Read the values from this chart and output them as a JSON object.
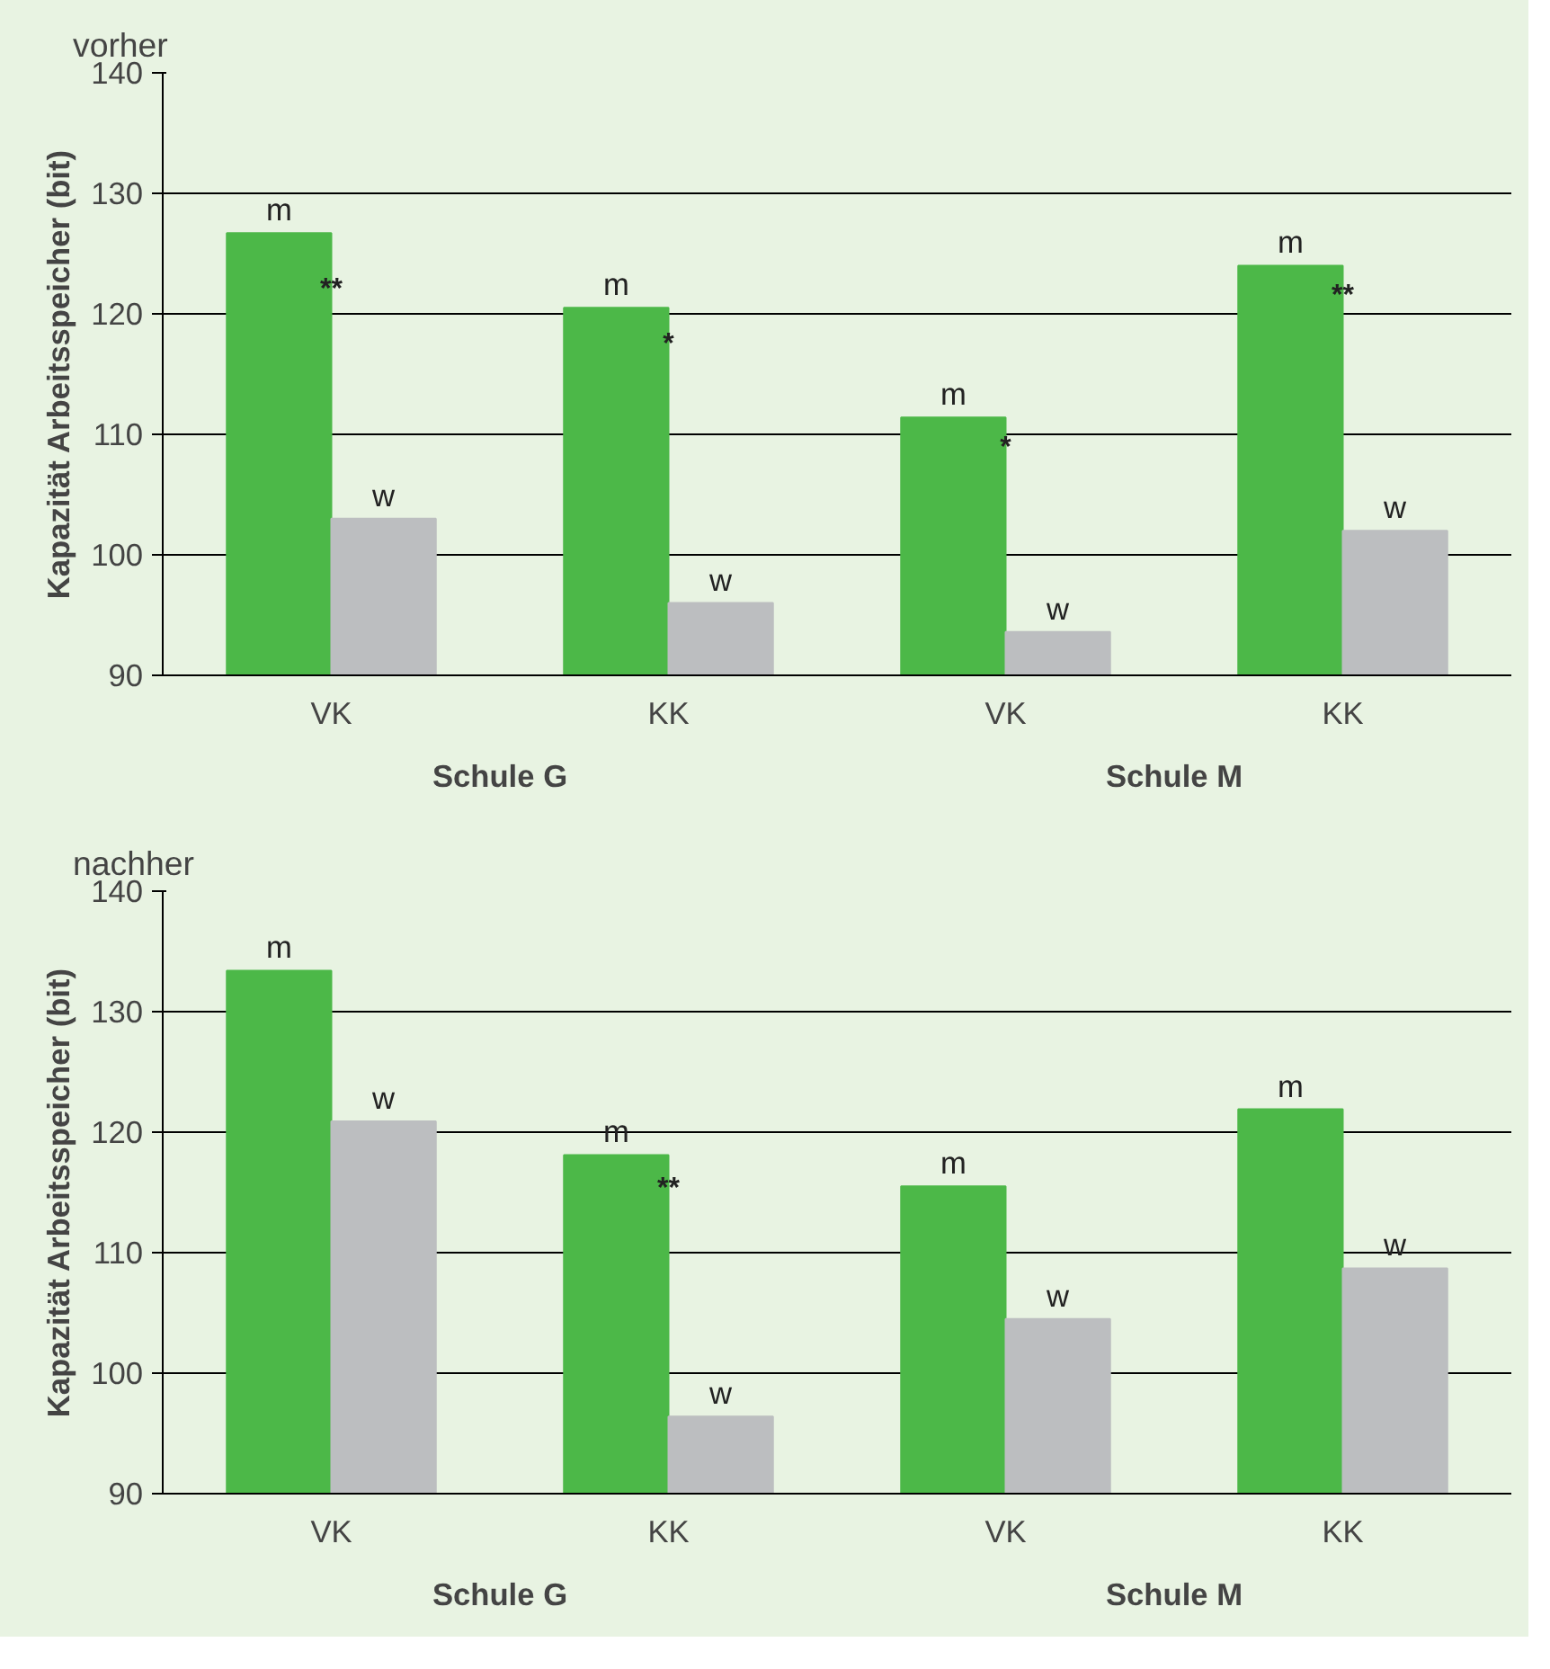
{
  "chart_data": [
    {
      "type": "bar",
      "title": "vorher",
      "ylabel": "Kapazität Arbeitsspeicher (bit)",
      "categories": [
        "VK",
        "KK",
        "VK",
        "KK"
      ],
      "series": [
        {
          "name": "m",
          "color": "#4cb848",
          "values": [
            126.7,
            120.5,
            111.4,
            124.0
          ]
        },
        {
          "name": "w",
          "color": "#bcbec0",
          "values": [
            103.0,
            96.0,
            93.6,
            102.0
          ]
        }
      ],
      "ylim": [
        90,
        140
      ],
      "yticks": [
        90,
        100,
        110,
        120,
        130,
        140
      ],
      "grid": "y",
      "annotations": [
        {
          "text": "**",
          "x": "VK",
          "y": 122
        },
        {
          "text": "*",
          "x": "KK",
          "y": 117.5
        },
        "*",
        "**",
        "Schule G",
        "Schule M"
      ]
    },
    {
      "type": "bar",
      "title": "nachher",
      "ylabel": "Kapazität Arbeitsspeicher (bit)",
      "categories": [
        "VK",
        "KK",
        "VK",
        "KK"
      ],
      "series": [
        {
          "name": "m",
          "color": "#4cb848",
          "values": [
            133.4,
            118.1,
            115.5,
            121.9
          ]
        },
        {
          "name": "w",
          "color": "#bcbec0",
          "values": [
            120.9,
            96.4,
            104.5,
            108.7
          ]
        }
      ],
      "ylim": [
        90,
        140
      ],
      "yticks": [
        90,
        100,
        110,
        120,
        130,
        140
      ],
      "grid": "y",
      "annotations": [
        {
          "text": "**",
          "x": "KK",
          "y": 115.3
        },
        "Schule G",
        "Schule M"
      ]
    }
  ]
}
